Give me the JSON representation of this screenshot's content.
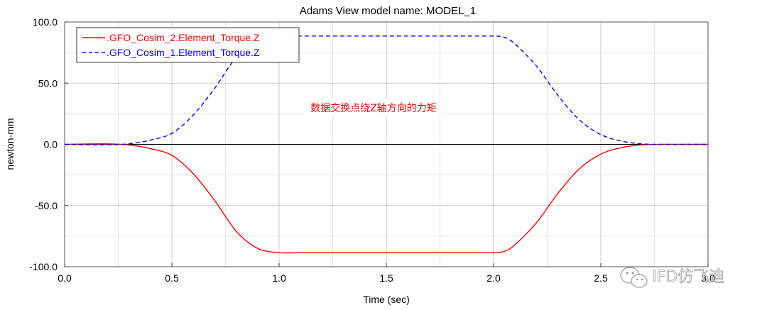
{
  "chart_data": {
    "type": "line",
    "title": "Adams View model name: MODEL_1",
    "xlabel": "Time (sec)",
    "ylabel": "newton-mm",
    "xlim": [
      0.0,
      3.0
    ],
    "ylim": [
      -100.0,
      100.0
    ],
    "x_ticks": [
      0.0,
      0.5,
      1.0,
      1.5,
      2.0,
      2.5,
      3.0
    ],
    "x_tick_labels": [
      "0.0",
      "0.5",
      "1.0",
      "1.5",
      "2.0",
      "2.5",
      "3.0"
    ],
    "y_ticks": [
      100.0,
      50.0,
      0.0,
      -50.0,
      -100.0
    ],
    "y_tick_labels": [
      "100.0",
      "50.0",
      "0.0",
      "-50.0",
      "-100.0"
    ],
    "grid": true,
    "legend_position": "top-left",
    "annotation": "数据交换点绕Z轴方向的力矩",
    "series": [
      {
        "name": ".GFO_Cosim_2.Element_Torque.Z",
        "color": "#ff0000",
        "style": "solid",
        "x": [
          0.0,
          0.1,
          0.2,
          0.3,
          0.4,
          0.5,
          0.6,
          0.7,
          0.8,
          0.9,
          1.0,
          1.1,
          1.2,
          1.3,
          1.4,
          1.5,
          1.6,
          1.7,
          1.8,
          1.9,
          2.0,
          2.05,
          2.1,
          2.2,
          2.3,
          2.4,
          2.5,
          2.6,
          2.7,
          2.8,
          2.9,
          3.0
        ],
        "y": [
          0.0,
          0.3,
          0.4,
          -0.5,
          -3.5,
          -9.0,
          -24.0,
          -46.0,
          -71.0,
          -85.0,
          -88.5,
          -88.5,
          -88.5,
          -88.5,
          -88.5,
          -88.5,
          -88.5,
          -88.5,
          -88.5,
          -88.5,
          -88.5,
          -87.5,
          -82.0,
          -64.0,
          -40.0,
          -20.0,
          -8.0,
          -2.5,
          -0.3,
          0.0,
          0.0,
          0.0
        ]
      },
      {
        "name": ".GFO_Cosim_1.Element_Torque.Z",
        "color": "#0000ff",
        "style": "dashed",
        "x": [
          0.0,
          0.1,
          0.2,
          0.3,
          0.4,
          0.5,
          0.6,
          0.7,
          0.8,
          0.9,
          1.0,
          1.1,
          1.2,
          1.3,
          1.4,
          1.5,
          1.6,
          1.7,
          1.8,
          1.9,
          2.0,
          2.05,
          2.1,
          2.2,
          2.3,
          2.4,
          2.5,
          2.6,
          2.7,
          2.8,
          2.9,
          3.0
        ],
        "y": [
          0.0,
          -0.3,
          -0.4,
          0.5,
          3.5,
          9.0,
          24.0,
          46.0,
          71.0,
          85.0,
          88.5,
          88.5,
          88.5,
          88.5,
          88.5,
          88.5,
          88.5,
          88.5,
          88.5,
          88.5,
          88.5,
          87.5,
          82.0,
          64.0,
          40.0,
          20.0,
          8.0,
          2.5,
          0.3,
          0.0,
          0.0,
          0.0
        ]
      }
    ]
  },
  "watermark": {
    "text": "IFD仿飞迪",
    "icon": "wechat-icon"
  }
}
